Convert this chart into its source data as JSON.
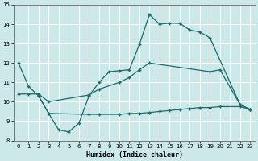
{
  "xlabel": "Humidex (Indice chaleur)",
  "bg_color": "#cce8e8",
  "grid_color": "#ffffff",
  "line_color": "#1a6b6b",
  "xlim": [
    -0.5,
    23.5
  ],
  "ylim": [
    8,
    15
  ],
  "xticks": [
    0,
    1,
    2,
    3,
    4,
    5,
    6,
    7,
    8,
    9,
    10,
    11,
    12,
    13,
    14,
    15,
    16,
    17,
    18,
    19,
    20,
    21,
    22,
    23
  ],
  "yticks": [
    8,
    9,
    10,
    11,
    12,
    13,
    14,
    15
  ],
  "line1_x": [
    0,
    1,
    2,
    3,
    4,
    5,
    6,
    7,
    8,
    9,
    10,
    11,
    12,
    13,
    14,
    15,
    16,
    17,
    18,
    19,
    22,
    23
  ],
  "line1_y": [
    12.0,
    10.8,
    10.3,
    9.4,
    8.55,
    8.45,
    8.9,
    10.3,
    11.0,
    11.55,
    11.6,
    11.65,
    12.95,
    14.5,
    14.0,
    14.05,
    14.05,
    13.7,
    13.6,
    13.3,
    9.85,
    9.6
  ],
  "line2_x": [
    0,
    1,
    2,
    3,
    7,
    8,
    10,
    11,
    12,
    13,
    19,
    20,
    22,
    23
  ],
  "line2_y": [
    10.4,
    10.4,
    10.4,
    10.0,
    10.35,
    10.65,
    11.0,
    11.25,
    11.65,
    12.0,
    11.55,
    11.65,
    9.85,
    9.6
  ],
  "line3_x": [
    2,
    3,
    7,
    8,
    10,
    11,
    12,
    13,
    14,
    15,
    16,
    17,
    18,
    19,
    20,
    22,
    23
  ],
  "line3_y": [
    10.3,
    9.4,
    9.35,
    9.35,
    9.35,
    9.4,
    9.4,
    9.45,
    9.5,
    9.55,
    9.6,
    9.65,
    9.7,
    9.7,
    9.75,
    9.75,
    9.6
  ]
}
